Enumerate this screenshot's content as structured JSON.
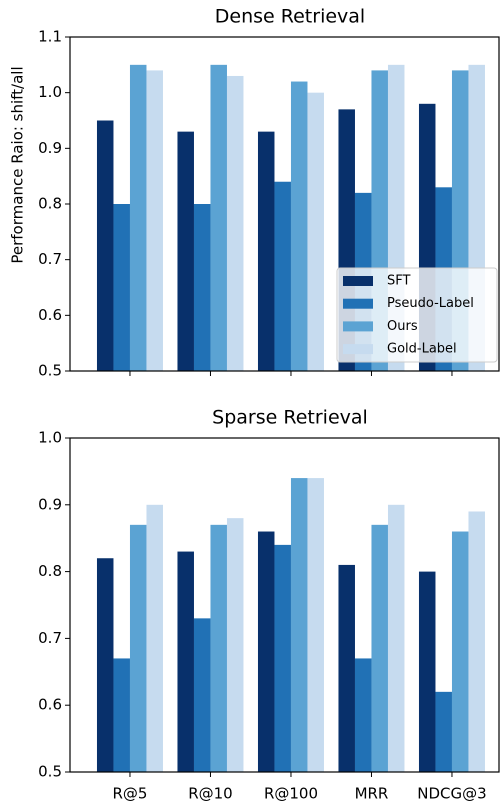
{
  "chart_data": [
    {
      "type": "bar",
      "title": "Dense Retrieval",
      "y_label": "Performance Raio: shift/all",
      "categories": [
        null,
        null,
        null,
        null,
        null
      ],
      "series": [
        {
          "name": "SFT",
          "color": "#08306b",
          "values": [
            0.95,
            0.93,
            0.93,
            0.97,
            0.98
          ]
        },
        {
          "name": "Pseudo-Label",
          "color": "#2171b5",
          "values": [
            0.8,
            0.8,
            0.84,
            0.82,
            0.83
          ]
        },
        {
          "name": "Ours",
          "color": "#5ba3d3",
          "values": [
            1.05,
            1.05,
            1.02,
            1.04,
            1.04
          ]
        },
        {
          "name": "Gold-Label",
          "color": "#c6dbef",
          "values": [
            1.04,
            1.03,
            1.0,
            1.05,
            1.05
          ]
        }
      ],
      "ylim": [
        0.5,
        1.1
      ],
      "yticks": [
        0.5,
        0.6,
        0.7,
        0.8,
        0.9,
        {
          "value": 1,
          "label": "1.0"
        },
        1.1
      ],
      "legend": "lower right"
    },
    {
      "type": "bar",
      "title": "Sparse Retrieval",
      "categories": [
        "R@5",
        "R@10",
        "R@100",
        "MRR",
        "NDCG@3"
      ],
      "series": [
        {
          "color": "#08306b",
          "values": [
            0.82,
            0.83,
            0.86,
            0.81,
            0.8
          ]
        },
        {
          "color": "#2171b5",
          "values": [
            0.67,
            0.73,
            0.84,
            0.67,
            0.62
          ]
        },
        {
          "color": "#5ba3d3",
          "values": [
            0.87,
            0.87,
            0.94,
            0.87,
            0.86
          ]
        },
        {
          "color": "#c6dbef",
          "values": [
            0.9,
            0.88,
            0.94,
            0.9,
            0.89
          ]
        }
      ],
      "ylim": [
        0.5,
        1.0
      ],
      "yticks": [
        0.5,
        0.6,
        0.7,
        0.8,
        0.9,
        {
          "value": 1,
          "label": "1.0"
        }
      ]
    }
  ]
}
